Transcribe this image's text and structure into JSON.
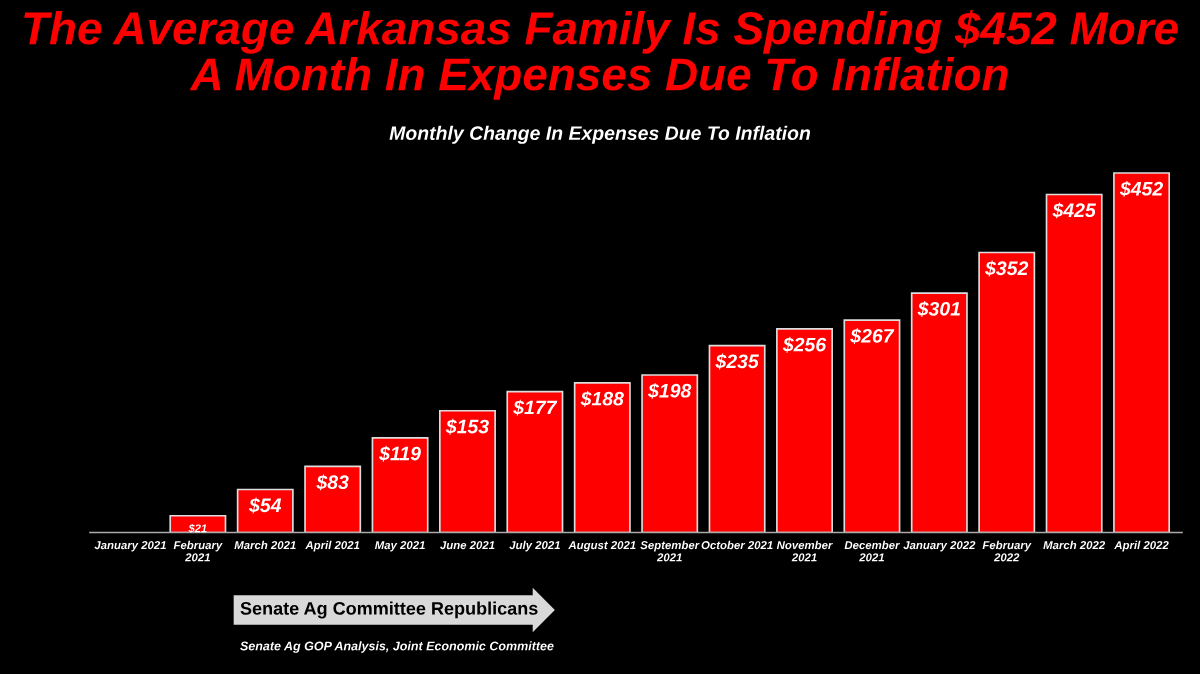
{
  "chart_data": {
    "type": "bar",
    "title": "The Average Arkansas Family Is Spending $452 More A Month In Expenses Due To Inflation",
    "subtitle": "Monthly Change In Expenses Due To Inflation",
    "categories": [
      "January 2021",
      "February 2021",
      "March 2021",
      "April 2021",
      "May 2021",
      "June 2021",
      "July 2021",
      "August 2021",
      "September 2021",
      "October 2021",
      "November 2021",
      "December 2021",
      "January 2022",
      "February 2022",
      "March 2022",
      "April 2022"
    ],
    "values": [
      0,
      21,
      54,
      83,
      119,
      153,
      177,
      188,
      198,
      235,
      256,
      267,
      301,
      352,
      425,
      452
    ],
    "value_labels": [
      null,
      "$21",
      "$54",
      "$83",
      "$119",
      "$153",
      "$177",
      "$188",
      "$198",
      "$235",
      "$256",
      "$267",
      "$301",
      "$352",
      "$425",
      "$452"
    ],
    "color": "#ff0000",
    "tick_labels": "x",
    "grid": false,
    "legend": false,
    "annotations": [
      "Senate Ag Committee Republicans",
      "Senate Ag GOP Analysis, Joint Economic Committee"
    ]
  }
}
